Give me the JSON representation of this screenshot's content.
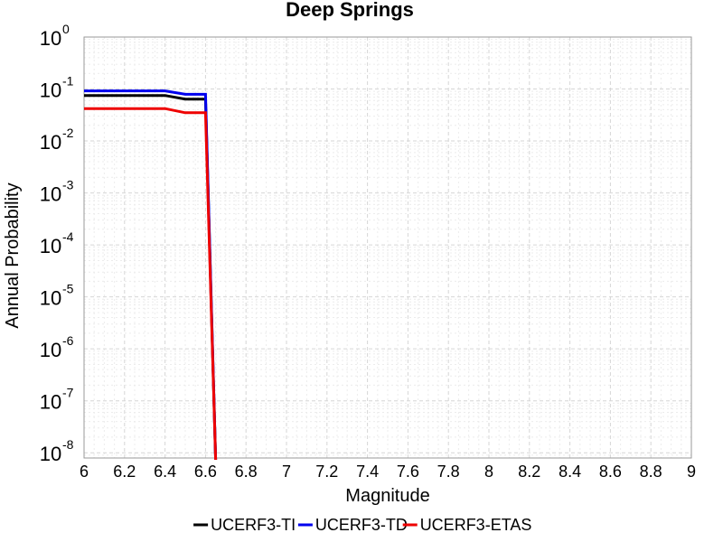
{
  "chart_data": {
    "type": "line",
    "title": "Deep Springs",
    "xlabel": "Magnitude",
    "ylabel": "Annual Probability",
    "xlim": [
      6,
      9
    ],
    "ylim_log10": [
      -8.1,
      0
    ],
    "y_scale": "log",
    "x_ticks": [
      "6",
      "6.2",
      "6.4",
      "6.6",
      "6.8",
      "7",
      "7.2",
      "7.4",
      "7.6",
      "7.8",
      "8",
      "8.2",
      "8.4",
      "8.6",
      "8.8",
      "9"
    ],
    "y_ticks": [
      {
        "base": "10",
        "exp": "0"
      },
      {
        "base": "10",
        "exp": "-1"
      },
      {
        "base": "10",
        "exp": "-2"
      },
      {
        "base": "10",
        "exp": "-3"
      },
      {
        "base": "10",
        "exp": "-4"
      },
      {
        "base": "10",
        "exp": "-5"
      },
      {
        "base": "10",
        "exp": "-6"
      },
      {
        "base": "10",
        "exp": "-7"
      },
      {
        "base": "10",
        "exp": "-8"
      }
    ],
    "grid": true,
    "legend_position": "bottom",
    "series": [
      {
        "name": "UCERF3-TI",
        "color": "#000000",
        "x": [
          6.0,
          6.4,
          6.5,
          6.6,
          6.65
        ],
        "y": [
          0.075,
          0.075,
          0.064,
          0.064,
          1e-09
        ]
      },
      {
        "name": "UCERF3-TD",
        "color": "#0000ee",
        "x": [
          6.0,
          6.4,
          6.5,
          6.6,
          6.65
        ],
        "y": [
          0.092,
          0.092,
          0.079,
          0.079,
          1e-09
        ]
      },
      {
        "name": "UCERF3-ETAS",
        "color": "#ee0000",
        "x": [
          6.0,
          6.4,
          6.5,
          6.6,
          6.65
        ],
        "y": [
          0.042,
          0.042,
          0.035,
          0.035,
          1e-09
        ]
      }
    ]
  }
}
